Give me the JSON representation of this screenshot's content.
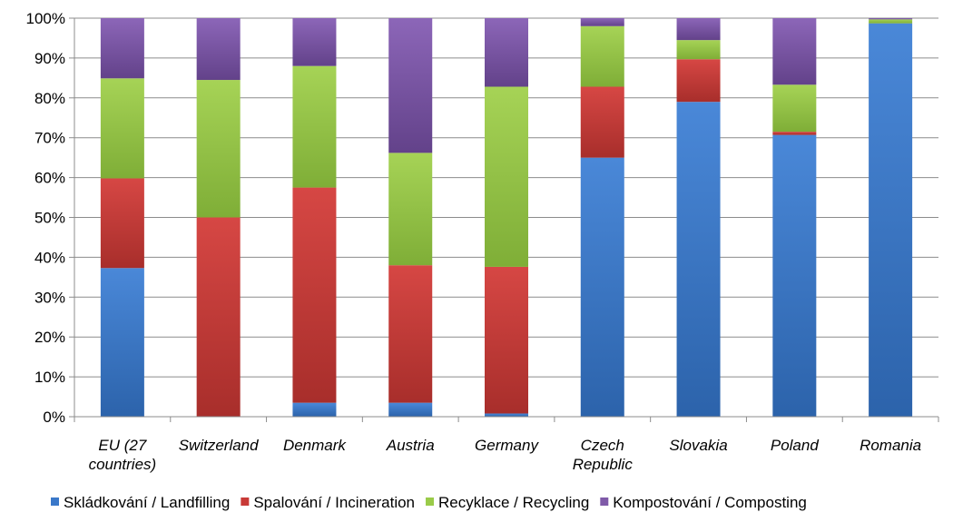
{
  "chart_data": {
    "type": "bar",
    "stacked": true,
    "percent_stacked": true,
    "categories": [
      [
        "EU (27",
        "countries)"
      ],
      [
        "Switzerland"
      ],
      [
        "Denmark"
      ],
      [
        "Austria"
      ],
      [
        "Germany"
      ],
      [
        "Czech",
        "Republic"
      ],
      [
        "Slovakia"
      ],
      [
        "Poland"
      ],
      [
        "Romania"
      ]
    ],
    "series": [
      {
        "name": "Skládkování / Landfilling",
        "color": "#3a78c9",
        "values": [
          37.3,
          0.0,
          3.5,
          3.5,
          0.8,
          65.0,
          79.0,
          70.7,
          98.7
        ]
      },
      {
        "name": "Spalování / Incineration",
        "color": "#c83a37",
        "values": [
          22.5,
          50.0,
          54.0,
          34.5,
          36.8,
          17.8,
          10.7,
          0.8,
          0.0
        ]
      },
      {
        "name": "Recyklace / Recycling",
        "color": "#9acb49",
        "values": [
          25.1,
          34.5,
          30.5,
          28.2,
          45.2,
          15.2,
          4.8,
          11.8,
          1.0
        ]
      },
      {
        "name": "Kompostování / Composting",
        "color": "#7f5aa8",
        "values": [
          15.1,
          15.5,
          12.0,
          33.8,
          17.2,
          2.0,
          5.5,
          16.7,
          0.3
        ]
      }
    ],
    "ylim": [
      0,
      100
    ],
    "yticks": [
      "0%",
      "10%",
      "20%",
      "30%",
      "40%",
      "50%",
      "60%",
      "70%",
      "80%",
      "90%",
      "100%"
    ],
    "grid": true,
    "legend": "bottom",
    "title": "",
    "xlabel": "",
    "ylabel": ""
  }
}
